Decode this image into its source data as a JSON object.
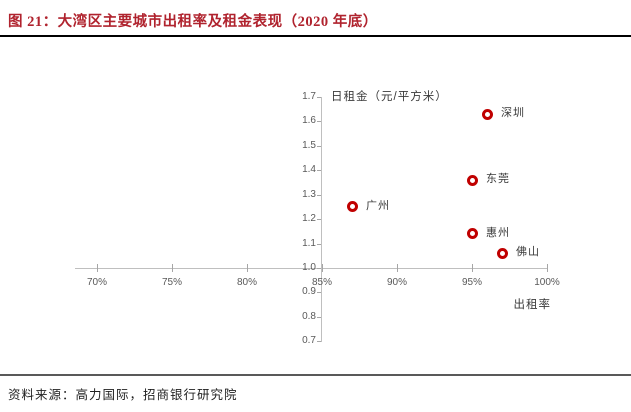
{
  "page": {
    "title": "图 21：大湾区主要城市出租率及租金表现（2020 年底）",
    "source": "资料来源：高力国际，招商银行研究院"
  },
  "colors": {
    "title_red": "#b0232e",
    "marker_red": "#c00000",
    "axis_line": "#bfbfbf",
    "tick_label_gray": "#595959",
    "axis_title_gray": "#3a3a3a",
    "header_rule": "#000000",
    "footer_rule": "#595959"
  },
  "chart_data": {
    "type": "scatter",
    "title": "",
    "xlabel": "出租率",
    "ylabel": "日租金（元/平方米）",
    "x_tick_labels": [
      "70%",
      "75%",
      "80%",
      "85%",
      "90%",
      "95%",
      "100%"
    ],
    "x_tick_values": [
      70,
      75,
      80,
      85,
      90,
      95,
      100
    ],
    "y_tick_labels": [
      "1.7",
      "1.6",
      "1.5",
      "1.4",
      "1.3",
      "1.2",
      "1.1",
      "1.0",
      "0.9",
      "0.8",
      "0.7"
    ],
    "y_tick_values": [
      1.7,
      1.6,
      1.5,
      1.4,
      1.3,
      1.2,
      1.1,
      1.0,
      0.9,
      0.8,
      0.7
    ],
    "xlim": [
      68.5,
      100
    ],
    "ylim": [
      0.7,
      1.7
    ],
    "axes_cross_at": {
      "x": 85,
      "y": 1.0
    },
    "grid": false,
    "legend": "none",
    "points": [
      {
        "name": "深圳",
        "occupancy_pct": 96,
        "daily_rent": 1.63
      },
      {
        "name": "东莞",
        "occupancy_pct": 95,
        "daily_rent": 1.36
      },
      {
        "name": "广州",
        "occupancy_pct": 87,
        "daily_rent": 1.25
      },
      {
        "name": "惠州",
        "occupancy_pct": 95,
        "daily_rent": 1.14
      },
      {
        "name": "佛山",
        "occupancy_pct": 97,
        "daily_rent": 1.06
      }
    ]
  }
}
